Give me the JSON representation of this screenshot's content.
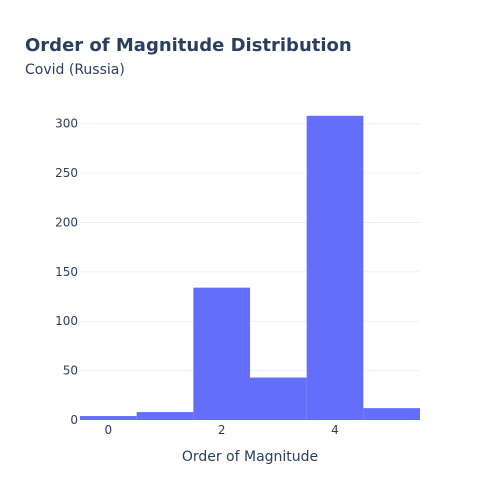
{
  "chart_data": {
    "type": "bar",
    "title": "Order of Magnitude Distribution",
    "subtitle": "Covid (Russia)",
    "xlabel": "Order of Magnitude",
    "ylabel": "",
    "bins": [
      {
        "x0": -0.5,
        "x1": 0.5,
        "value": 4
      },
      {
        "x0": 0.5,
        "x1": 1.5,
        "value": 8
      },
      {
        "x0": 1.5,
        "x1": 2.5,
        "value": 134
      },
      {
        "x0": 2.5,
        "x1": 3.5,
        "value": 43
      },
      {
        "x0": 3.5,
        "x1": 4.5,
        "value": 308
      },
      {
        "x0": 4.5,
        "x1": 5.5,
        "value": 12
      }
    ],
    "xlim": [
      -0.5,
      5.5
    ],
    "ylim": [
      0,
      324
    ],
    "x_ticks": [
      0,
      2,
      4
    ],
    "y_ticks": [
      0,
      50,
      100,
      150,
      200,
      250,
      300
    ],
    "grid": true,
    "bar_color": "#636efa"
  }
}
